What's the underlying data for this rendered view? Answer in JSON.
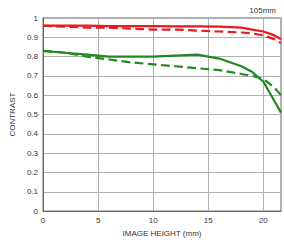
{
  "chart_data": {
    "type": "line",
    "title": "105mm",
    "x_label": "IMAGE HEIGHT (mm)",
    "y_label": "CONTRAST",
    "x": [
      0,
      2,
      4,
      6,
      8,
      10,
      12,
      14,
      16,
      18,
      19,
      20,
      21,
      21.6
    ],
    "series": [
      {
        "color": "#e8191f",
        "line_style": "solid",
        "values": [
          0.96,
          0.96,
          0.96,
          0.958,
          0.958,
          0.958,
          0.957,
          0.957,
          0.955,
          0.95,
          0.94,
          0.93,
          0.91,
          0.89
        ]
      },
      {
        "color": "#e8191f",
        "line_style": "dashed",
        "values": [
          0.96,
          0.955,
          0.95,
          0.95,
          0.945,
          0.94,
          0.94,
          0.935,
          0.93,
          0.925,
          0.92,
          0.91,
          0.89,
          0.87
        ]
      },
      {
        "color": "#1f8a1f",
        "line_style": "solid",
        "values": [
          0.83,
          0.82,
          0.81,
          0.8,
          0.8,
          0.8,
          0.805,
          0.81,
          0.79,
          0.75,
          0.72,
          0.67,
          0.57,
          0.51
        ]
      },
      {
        "color": "#1f8a1f",
        "line_style": "dashed",
        "values": [
          0.83,
          0.82,
          0.8,
          0.785,
          0.77,
          0.76,
          0.75,
          0.74,
          0.73,
          0.71,
          0.7,
          0.685,
          0.64,
          0.6
        ]
      }
    ],
    "xlim": [
      0,
      21.6
    ],
    "ylim": [
      0,
      1
    ],
    "xticks": [
      0,
      5,
      10,
      15,
      20
    ],
    "yticks": [
      0,
      0.1,
      0.2,
      0.3,
      0.4,
      0.5,
      0.6,
      0.7,
      0.8,
      0.9,
      1
    ],
    "grid": true
  }
}
